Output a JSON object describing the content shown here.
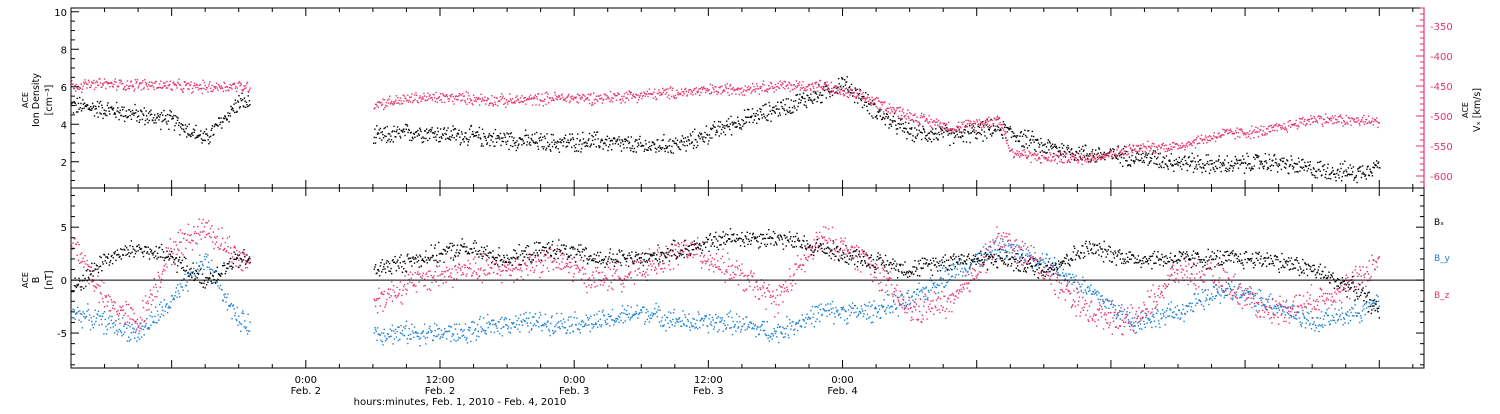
{
  "chart_data": [
    {
      "type": "scatter",
      "panel": "top",
      "title": "",
      "ylabel_left": [
        "ACE",
        "Ion Density",
        "[cm⁻³]"
      ],
      "ylabel_right": [
        "ACE",
        "Vₓ [km/s]"
      ],
      "xlim_hours": [
        -21,
        100
      ],
      "ylim_left": [
        0.6,
        10.2
      ],
      "ylim_right": [
        -620,
        -320
      ],
      "yticks_left": [
        "10",
        "8",
        "6",
        "4",
        "2"
      ],
      "yticks_left_values": [
        10,
        8,
        6,
        4,
        2
      ],
      "yticks_right": [
        "-350",
        "-400",
        "-450",
        "-500",
        "-550",
        "-600"
      ],
      "yticks_right_values": [
        -350,
        -400,
        -450,
        -500,
        -550,
        -600
      ],
      "colors": {
        "density": "#000000",
        "vx": "#e8336a"
      },
      "series": [
        {
          "name": "Ion Density",
          "axis": "left",
          "color": "#000000",
          "gap_hours": [
            -5,
            6
          ],
          "hours": [
            -21,
            -18,
            -15,
            -12,
            -9,
            -6,
            6,
            10,
            14,
            18,
            22,
            26,
            30,
            34,
            38,
            42,
            46,
            48,
            50,
            52,
            54,
            58,
            62,
            66,
            70,
            74,
            78,
            82,
            86,
            90,
            94,
            96
          ],
          "values": [
            5.0,
            4.8,
            4.5,
            4.2,
            3.2,
            5.2,
            3.3,
            3.6,
            3.4,
            3.2,
            3.0,
            3.1,
            2.8,
            3.0,
            4.0,
            4.8,
            5.6,
            6.2,
            5.2,
            4.2,
            3.6,
            3.4,
            3.8,
            2.8,
            2.4,
            2.3,
            2.0,
            1.8,
            2.0,
            1.6,
            1.4,
            1.9
          ]
        },
        {
          "name": "Vx",
          "axis": "right",
          "color": "#e8336a",
          "gap_hours": [
            -5,
            6
          ],
          "hours": [
            -21,
            -18,
            -14,
            -10,
            -6,
            6,
            10,
            14,
            18,
            22,
            26,
            30,
            34,
            38,
            42,
            46,
            50,
            54,
            56,
            58,
            62,
            63,
            66,
            70,
            74,
            78,
            82,
            86,
            90,
            94,
            96
          ],
          "values": [
            -450,
            -447,
            -448,
            -452,
            -450,
            -480,
            -470,
            -470,
            -475,
            -470,
            -470,
            -465,
            -460,
            -455,
            -450,
            -450,
            -470,
            -500,
            -510,
            -520,
            -505,
            -560,
            -570,
            -570,
            -555,
            -550,
            -530,
            -525,
            -505,
            -508,
            -510
          ]
        }
      ]
    },
    {
      "type": "scatter",
      "panel": "bottom",
      "title": "",
      "ylabel_left": [
        "ACE",
        "B",
        "[nT]"
      ],
      "xlim_hours": [
        -21,
        100
      ],
      "ylim": [
        -8.3,
        8.7
      ],
      "yticks": [
        "5",
        "0",
        "-5"
      ],
      "yticks_values": [
        5,
        0,
        -5
      ],
      "zero_line": true,
      "legend_placement": "right",
      "colors": {
        "Bx": "#000000",
        "By": "#1a7fd4",
        "Bz": "#e8336a"
      },
      "series": [
        {
          "name": "Bₓ",
          "color": "#000000",
          "gap_hours": [
            -5,
            6
          ],
          "hours": [
            -21,
            -18,
            -15,
            -12,
            -9,
            -6,
            6,
            10,
            14,
            18,
            22,
            26,
            30,
            34,
            38,
            42,
            46,
            50,
            54,
            58,
            62,
            66,
            70,
            74,
            78,
            82,
            86,
            90,
            94,
            96
          ],
          "values": [
            -1,
            2,
            3,
            2,
            0,
            2,
            1,
            2,
            3,
            2,
            3,
            2,
            2,
            3,
            4,
            4,
            3,
            2,
            1,
            2,
            2,
            1,
            3,
            2,
            2,
            2,
            2,
            1,
            -1,
            -3
          ]
        },
        {
          "name": "B_y",
          "color": "#1a7fd4",
          "gap_hours": [
            -5,
            6
          ],
          "hours": [
            -21,
            -18,
            -15,
            -12,
            -9,
            -6,
            6,
            10,
            14,
            18,
            22,
            26,
            30,
            34,
            38,
            42,
            46,
            50,
            54,
            58,
            62,
            66,
            70,
            74,
            78,
            82,
            86,
            90,
            94,
            96
          ],
          "values": [
            -3,
            -4,
            -5,
            -2,
            2,
            -4,
            -5,
            -5,
            -5,
            -4,
            -4,
            -4,
            -3,
            -4,
            -4,
            -5,
            -3,
            -3,
            -2,
            1,
            3,
            2,
            -1,
            -4,
            -3,
            -1,
            -2,
            -4,
            -3,
            -2
          ]
        },
        {
          "name": "B_z",
          "color": "#e8336a",
          "gap_hours": [
            -5,
            6
          ],
          "hours": [
            -21,
            -18,
            -15,
            -12,
            -9,
            -6,
            6,
            10,
            14,
            18,
            22,
            26,
            30,
            34,
            38,
            42,
            46,
            50,
            54,
            58,
            62,
            66,
            70,
            74,
            78,
            82,
            86,
            90,
            94,
            96
          ],
          "values": [
            4,
            -2,
            -4,
            3,
            5,
            2,
            -2,
            0,
            1,
            1,
            2,
            0,
            1,
            3,
            1,
            -2,
            4,
            2,
            -3,
            -2,
            4,
            1,
            -3,
            -4,
            1,
            0,
            -3,
            -2,
            0,
            2
          ]
        }
      ]
    }
  ],
  "x_axis": {
    "label": "hours:minutes, Feb.  1, 2010 - Feb.  4, 2010",
    "major_hours": [
      0,
      12,
      24,
      36,
      48,
      60,
      72,
      84,
      96
    ],
    "ticks": [
      {
        "hour": 0,
        "time": "0:00",
        "date": "Feb. 2"
      },
      {
        "hour": 12,
        "time": "12:00",
        "date": "Feb. 2"
      },
      {
        "hour": 24,
        "time": "0:00",
        "date": "Feb. 3"
      },
      {
        "hour": 36,
        "time": "12:00",
        "date": "Feb. 3"
      },
      {
        "hour": 48,
        "time": "0:00",
        "date": "Feb. 4"
      }
    ]
  }
}
